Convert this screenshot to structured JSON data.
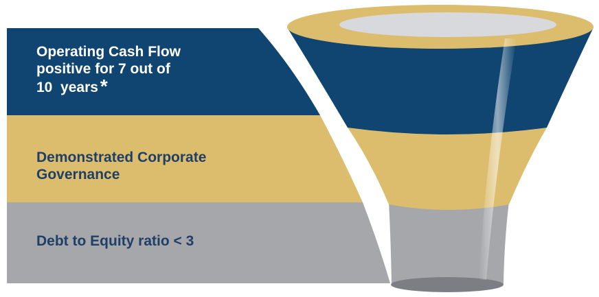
{
  "colors": {
    "navy": "#0f4570",
    "gold": "#dcbd6e",
    "gray": "#a6a7ab",
    "label_dark": "#1f3f66",
    "label_light": "#ffffff"
  },
  "levels": [
    {
      "lines": [
        "Operating Cash Flow",
        "positive for 7 out of",
        "10  years"
      ],
      "marker": "*"
    },
    {
      "lines": [
        "Demonstrated Corporate",
        "Governance"
      ]
    },
    {
      "lines": [
        "Debt to Equity ratio < 3"
      ]
    }
  ]
}
